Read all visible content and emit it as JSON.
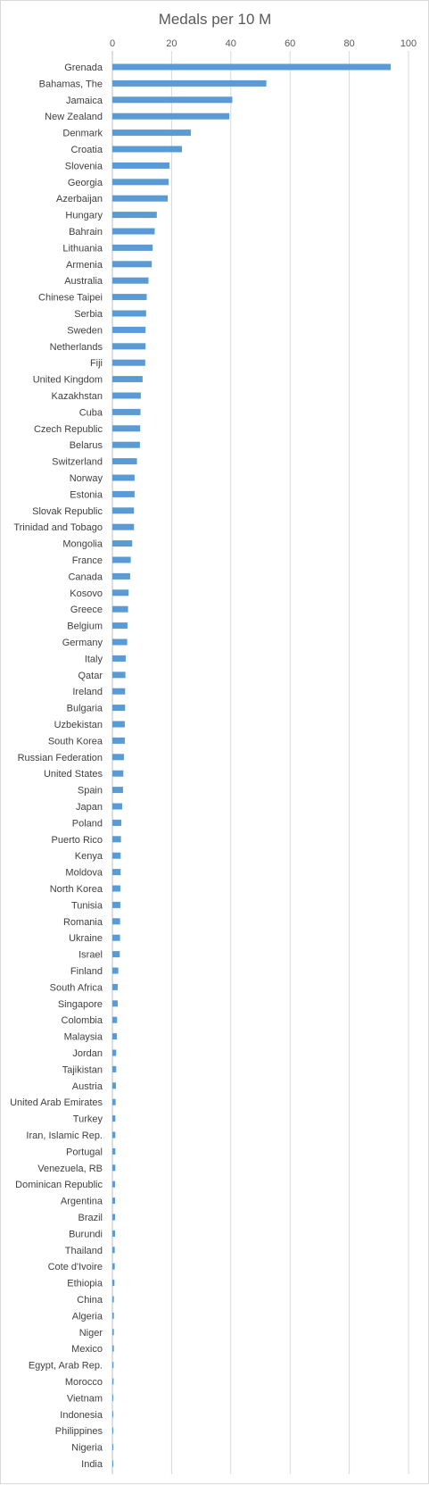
{
  "chart_data": {
    "type": "bar",
    "orientation": "horizontal",
    "title": "Medals per 10 M",
    "xlabel": "",
    "ylabel": "",
    "xlim": [
      0,
      100
    ],
    "x_ticks": [
      0,
      20,
      40,
      60,
      80,
      100
    ],
    "x_tick_labels": [
      "0",
      "20",
      "40",
      "60",
      "80",
      "100"
    ],
    "grid": "vertical gridlines on",
    "legend": "none",
    "x_axis_position": "top",
    "bar_color": "#5b9bd5",
    "categories": [
      "Grenada",
      "Bahamas, The",
      "Jamaica",
      "New Zealand",
      "Denmark",
      "Croatia",
      "Slovenia",
      "Georgia",
      "Azerbaijan",
      "Hungary",
      "Bahrain",
      "Lithuania",
      "Armenia",
      "Australia",
      "Chinese Taipei",
      "Serbia",
      "Sweden",
      "Netherlands",
      "Fiji",
      "United Kingdom",
      "Kazakhstan",
      "Cuba",
      "Czech Republic",
      "Belarus",
      "Switzerland",
      "Norway",
      "Estonia",
      "Slovak Republic",
      "Trinidad and Tobago",
      "Mongolia",
      "France",
      "Canada",
      "Kosovo",
      "Greece",
      "Belgium",
      "Germany",
      "Italy",
      "Qatar",
      "Ireland",
      "Bulgaria",
      "Uzbekistan",
      "South Korea",
      "Russian Federation",
      "United States",
      "Spain",
      "Japan",
      "Poland",
      "Puerto Rico",
      "Kenya",
      "Moldova",
      "North Korea",
      "Tunisia",
      "Romania",
      "Ukraine",
      "Israel",
      "Finland",
      "South Africa",
      "Singapore",
      "Colombia",
      "Malaysia",
      "Jordan",
      "Tajikistan",
      "Austria",
      "United Arab Emirates",
      "Turkey",
      "Iran, Islamic Rep.",
      "Portugal",
      "Venezuela, RB",
      "Dominican Republic",
      "Argentina",
      "Brazil",
      "Burundi",
      "Thailand",
      "Cote d'Ivoire",
      "Ethiopia",
      "China",
      "Algeria",
      "Niger",
      "Mexico",
      "Egypt, Arab Rep.",
      "Morocco",
      "Vietnam",
      "Indonesia",
      "Philippines",
      "Nigeria",
      "India"
    ],
    "values": [
      94.0,
      52.0,
      40.5,
      39.5,
      26.5,
      23.5,
      19.3,
      19.0,
      18.7,
      15.0,
      14.3,
      13.6,
      13.3,
      12.2,
      11.6,
      11.4,
      11.2,
      11.2,
      11.1,
      10.2,
      9.6,
      9.5,
      9.4,
      9.3,
      8.3,
      7.5,
      7.5,
      7.3,
      7.3,
      6.7,
      6.2,
      6.0,
      5.5,
      5.3,
      5.1,
      5.0,
      4.5,
      4.4,
      4.3,
      4.3,
      4.2,
      4.2,
      3.9,
      3.7,
      3.6,
      3.3,
      3.0,
      2.9,
      2.8,
      2.8,
      2.7,
      2.7,
      2.6,
      2.6,
      2.5,
      2.0,
      1.8,
      1.8,
      1.6,
      1.5,
      1.3,
      1.3,
      1.2,
      1.1,
      1.0,
      1.0,
      1.0,
      1.0,
      0.9,
      0.9,
      0.9,
      0.9,
      0.8,
      0.8,
      0.7,
      0.5,
      0.5,
      0.5,
      0.5,
      0.4,
      0.4,
      0.3,
      0.3,
      0.3,
      0.2,
      0.2
    ]
  }
}
